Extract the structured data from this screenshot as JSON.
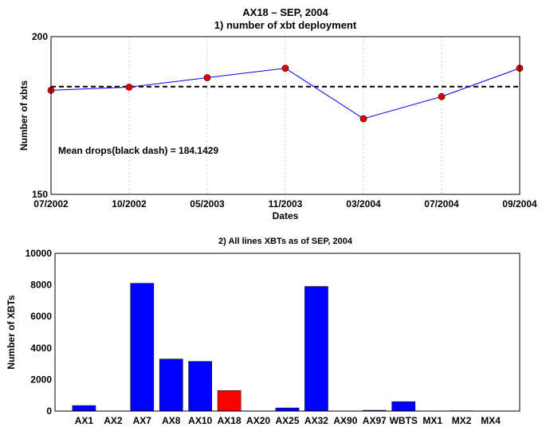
{
  "figure": {
    "title_line1": "AX18 – SEP, 2004",
    "title_line2": "1) number of xbt deployment",
    "title_bottom": "2) All lines XBTs as of SEP, 2004"
  },
  "chart_data": [
    {
      "type": "line",
      "xlabel": "Dates",
      "ylabel": "Number of xbts",
      "ylim": [
        150,
        200
      ],
      "y_ticks": [
        "150",
        "200"
      ],
      "categories": [
        "07/2002",
        "10/2002",
        "05/2003",
        "11/2003",
        "03/2004",
        "07/2004",
        "09/2004"
      ],
      "series": [
        {
          "values": [
            183,
            184,
            187,
            190,
            174,
            181,
            190
          ],
          "color": "#0000ff",
          "marker_color": "#dd0000"
        }
      ],
      "mean": 184.1429,
      "annotation": "Mean drops(black dash) = 184.1429",
      "grid": "vertical dotted"
    },
    {
      "type": "bar",
      "ylabel": "Number of XBTs",
      "ylim": [
        0,
        10000
      ],
      "y_ticks": [
        "0",
        "2000",
        "4000",
        "6000",
        "8000",
        "10000"
      ],
      "categories": [
        "AX1",
        "AX2",
        "AX7",
        "AX8",
        "AX10",
        "AX18",
        "AX20",
        "AX25",
        "AX32",
        "AX90",
        "AX97",
        "WBTS",
        "MX1",
        "MX2",
        "MX4"
      ],
      "values": [
        350,
        0,
        8100,
        3300,
        3150,
        1300,
        0,
        200,
        7900,
        0,
        50,
        600,
        0,
        20,
        0
      ],
      "colors": {
        "default": "#0000ff",
        "highlight": "#ff0000"
      },
      "highlight": "AX18"
    }
  ]
}
